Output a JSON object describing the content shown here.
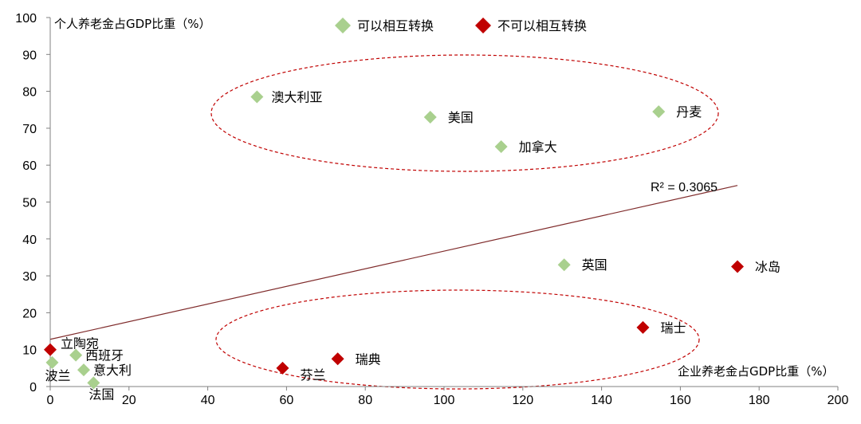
{
  "chart_data": {
    "type": "scatter",
    "title": "",
    "xlabel": "企业养老金占GDP比重（%）",
    "ylabel": "个人养老金占GDP比重（%）",
    "xlim": [
      0,
      200
    ],
    "ylim": [
      0,
      100
    ],
    "xticks": [
      "0",
      "20",
      "40",
      "60",
      "80",
      "100",
      "120",
      "140",
      "160",
      "180",
      "200"
    ],
    "yticks": [
      "0",
      "10",
      "20",
      "30",
      "40",
      "50",
      "60",
      "70",
      "80",
      "90",
      "100"
    ],
    "grid": false,
    "legend_position": "top-center",
    "series": [
      {
        "name": "可以相互转换",
        "color": "#a9d08e",
        "points": [
          {
            "label": "澳大利亚",
            "x": 52.5,
            "y": 78.5
          },
          {
            "label": "美国",
            "x": 96.5,
            "y": 73
          },
          {
            "label": "丹麦",
            "x": 154.5,
            "y": 74.5
          },
          {
            "label": "加拿大",
            "x": 114.5,
            "y": 65
          },
          {
            "label": "英国",
            "x": 130.5,
            "y": 33
          },
          {
            "label": "西班牙",
            "x": 6.5,
            "y": 8.5
          },
          {
            "label": "波兰",
            "x": 0.5,
            "y": 6.5
          },
          {
            "label": "意大利",
            "x": 8.5,
            "y": 4.5
          },
          {
            "label": "法国",
            "x": 11,
            "y": 1
          }
        ]
      },
      {
        "name": "不可以相互转换",
        "color": "#c00000",
        "points": [
          {
            "label": "冰岛",
            "x": 174.5,
            "y": 32.5
          },
          {
            "label": "瑞士",
            "x": 150.5,
            "y": 16
          },
          {
            "label": "瑞典",
            "x": 73,
            "y": 7.5
          },
          {
            "label": "芬兰",
            "x": 59,
            "y": 5
          },
          {
            "label": "立陶宛",
            "x": 0,
            "y": 10
          }
        ]
      }
    ],
    "trendline": {
      "x0": 0,
      "y0": 12.8,
      "x1": 174.5,
      "y1": 54.5,
      "color": "#7f2b2b"
    },
    "annotations": [
      "R² = 0.3065"
    ]
  }
}
